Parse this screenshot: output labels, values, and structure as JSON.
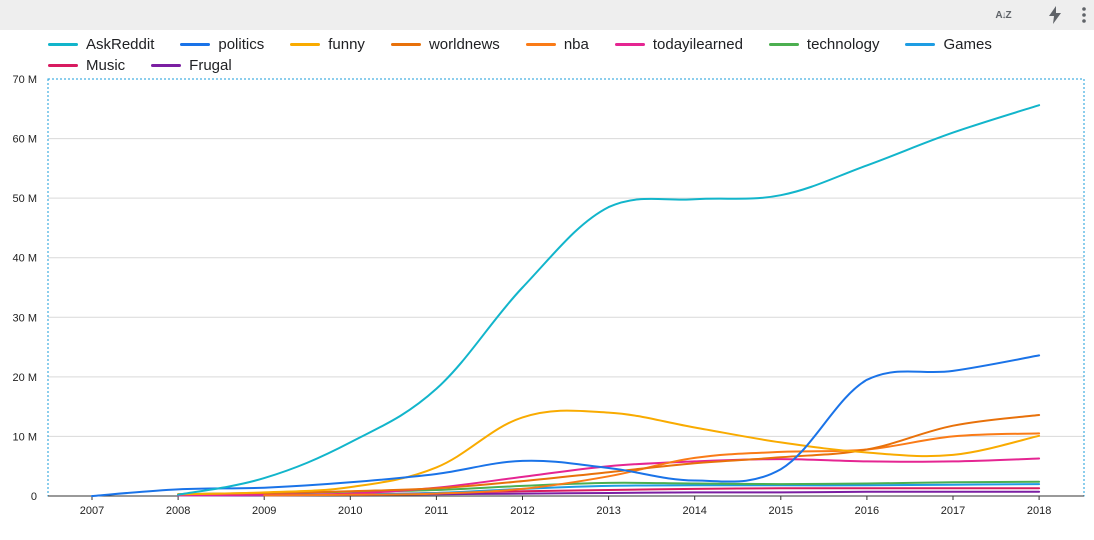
{
  "toolbar": {
    "sort_icon_text": "A↓Z",
    "icons": [
      "sort-az-icon",
      "bolt-icon",
      "more-vert-icon"
    ]
  },
  "chart_data": {
    "type": "line",
    "title": "",
    "xlabel": "",
    "ylabel": "",
    "x": [
      "2007",
      "2008",
      "2009",
      "2010",
      "2011",
      "2012",
      "2013",
      "2014",
      "2015",
      "2016",
      "2017",
      "2018"
    ],
    "ylim": [
      0,
      70000000
    ],
    "y_ticks": [
      0,
      10000000,
      20000000,
      30000000,
      40000000,
      50000000,
      60000000,
      70000000
    ],
    "y_tick_labels": [
      "0",
      "10 M",
      "20 M",
      "30 M",
      "40 M",
      "50 M",
      "60 M",
      "70 M"
    ],
    "grid": true,
    "legend_position": "top",
    "series": [
      {
        "name": "AskReddit",
        "color": "#12b5cb",
        "values": [
          null,
          200000,
          3000000,
          9000000,
          18000000,
          35000000,
          48500000,
          49800000,
          50500000,
          55500000,
          61000000,
          65600000
        ]
      },
      {
        "name": "politics",
        "color": "#1a73e8",
        "values": [
          0,
          1100000,
          1400000,
          2300000,
          3700000,
          5900000,
          4700000,
          2600000,
          4500000,
          19500000,
          21000000,
          23600000
        ]
      },
      {
        "name": "funny",
        "color": "#f9ab00",
        "values": [
          null,
          300000,
          600000,
          1500000,
          4800000,
          13200000,
          14000000,
          11500000,
          9000000,
          7300000,
          6900000,
          10100000
        ]
      },
      {
        "name": "worldnews",
        "color": "#e8710a",
        "values": [
          null,
          300000,
          500000,
          800000,
          1300000,
          2500000,
          4000000,
          5500000,
          6500000,
          7800000,
          11800000,
          13600000
        ]
      },
      {
        "name": "nba",
        "color": "#fa7b17",
        "values": [
          null,
          null,
          100000,
          200000,
          400000,
          1200000,
          3300000,
          6400000,
          7400000,
          7800000,
          10000000,
          10500000
        ]
      },
      {
        "name": "todayilearned",
        "color": "#e52592",
        "values": [
          null,
          100000,
          200000,
          400000,
          1400000,
          3200000,
          5000000,
          5800000,
          6200000,
          5800000,
          5800000,
          6300000
        ]
      },
      {
        "name": "technology",
        "color": "#4caf50",
        "values": [
          null,
          300000,
          500000,
          700000,
          1000000,
          1700000,
          2200000,
          2100000,
          2000000,
          2100000,
          2300000,
          2400000
        ]
      },
      {
        "name": "Games",
        "color": "#1e9de3",
        "values": [
          null,
          100000,
          200000,
          300000,
          500000,
          1200000,
          1700000,
          1800000,
          1800000,
          1800000,
          1900000,
          2000000
        ]
      },
      {
        "name": "Music",
        "color": "#d81b60",
        "values": [
          null,
          100000,
          200000,
          300000,
          500000,
          800000,
          1000000,
          1200000,
          1300000,
          1300000,
          1300000,
          1300000
        ]
      },
      {
        "name": "Frugal",
        "color": "#7b1fa2",
        "values": [
          null,
          100000,
          100000,
          200000,
          300000,
          400000,
          500000,
          600000,
          600000,
          700000,
          700000,
          700000
        ]
      }
    ]
  }
}
